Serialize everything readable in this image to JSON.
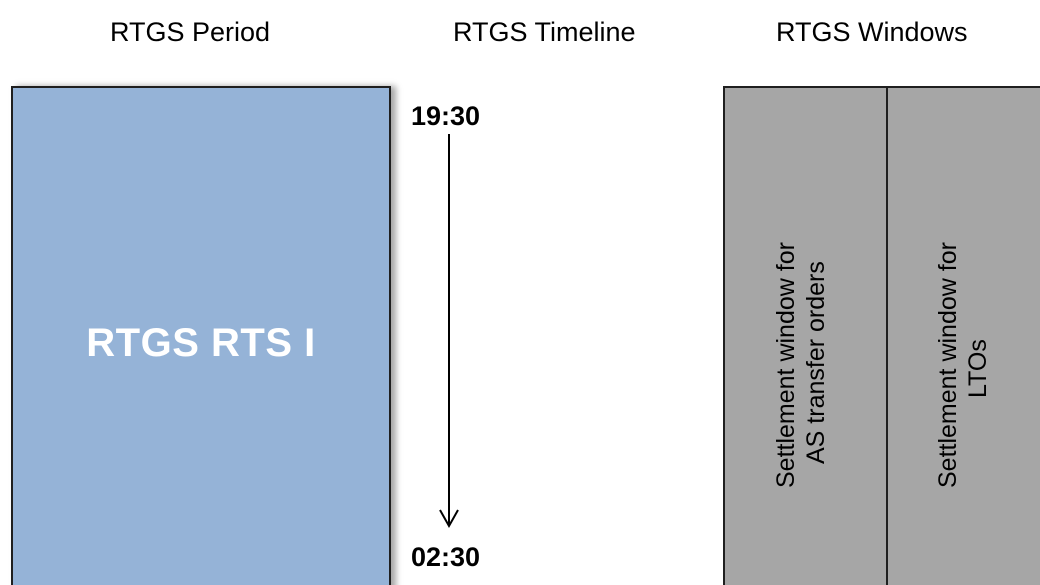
{
  "headings": {
    "period": "RTGS Period",
    "timeline": "RTGS Timeline",
    "windows": "RTGS Windows"
  },
  "period_box": {
    "label": "RTGS RTS I",
    "fill_color": "#95b3d7"
  },
  "timeline": {
    "start_time": "19:30",
    "end_time": "02:30"
  },
  "windows": {
    "fill_color": "#a6a6a6",
    "items": [
      {
        "line1": "Settlement window for",
        "line2": "AS  transfer orders"
      },
      {
        "line1": "Settlement window for",
        "line2": "LTOs"
      }
    ]
  }
}
